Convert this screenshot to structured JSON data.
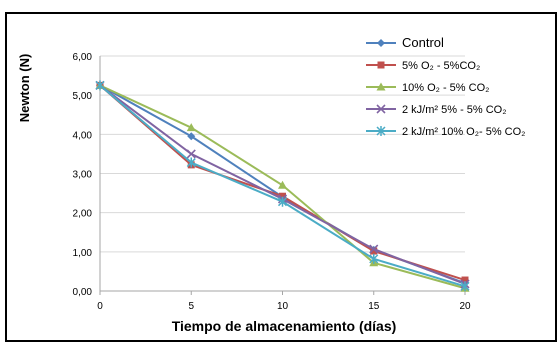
{
  "chart_data": {
    "type": "line",
    "xlabel": "Tiempo de almacenamiento  (días)",
    "ylabel": "Newton (N)",
    "x": [
      0,
      5,
      10,
      15,
      20
    ],
    "xticks": [
      "0",
      "5",
      "10",
      "15",
      "20"
    ],
    "ylim": [
      0,
      6
    ],
    "yticks": [
      "0,00",
      "1,00",
      "2,00",
      "3,00",
      "4,00",
      "5,00",
      "6,00"
    ],
    "grid": "horizontal",
    "legend_position": "top-right",
    "series": [
      {
        "name": "Control",
        "color": "#4F81BD",
        "marker": "diamond",
        "values": [
          5.25,
          3.95,
          2.4,
          1.05,
          0.2
        ]
      },
      {
        "name": "5% O₂ - 5%CO₂",
        "color": "#C0504D",
        "marker": "square",
        "values": [
          5.25,
          3.22,
          2.42,
          1.02,
          0.28
        ]
      },
      {
        "name": "10% O₂ - 5% CO₂",
        "color": "#9BBB59",
        "marker": "triangle",
        "values": [
          5.25,
          4.17,
          2.7,
          0.72,
          0.07
        ]
      },
      {
        "name": "2 kJ/m² 5% - 5% CO₂",
        "color": "#8064A2",
        "marker": "x",
        "values": [
          5.25,
          3.5,
          2.35,
          1.07,
          0.18
        ]
      },
      {
        "name": "2 kJ/m² 10% O₂- 5% CO₂",
        "color": "#4BACC6",
        "marker": "star",
        "values": [
          5.25,
          3.28,
          2.28,
          0.82,
          0.12
        ]
      }
    ]
  }
}
